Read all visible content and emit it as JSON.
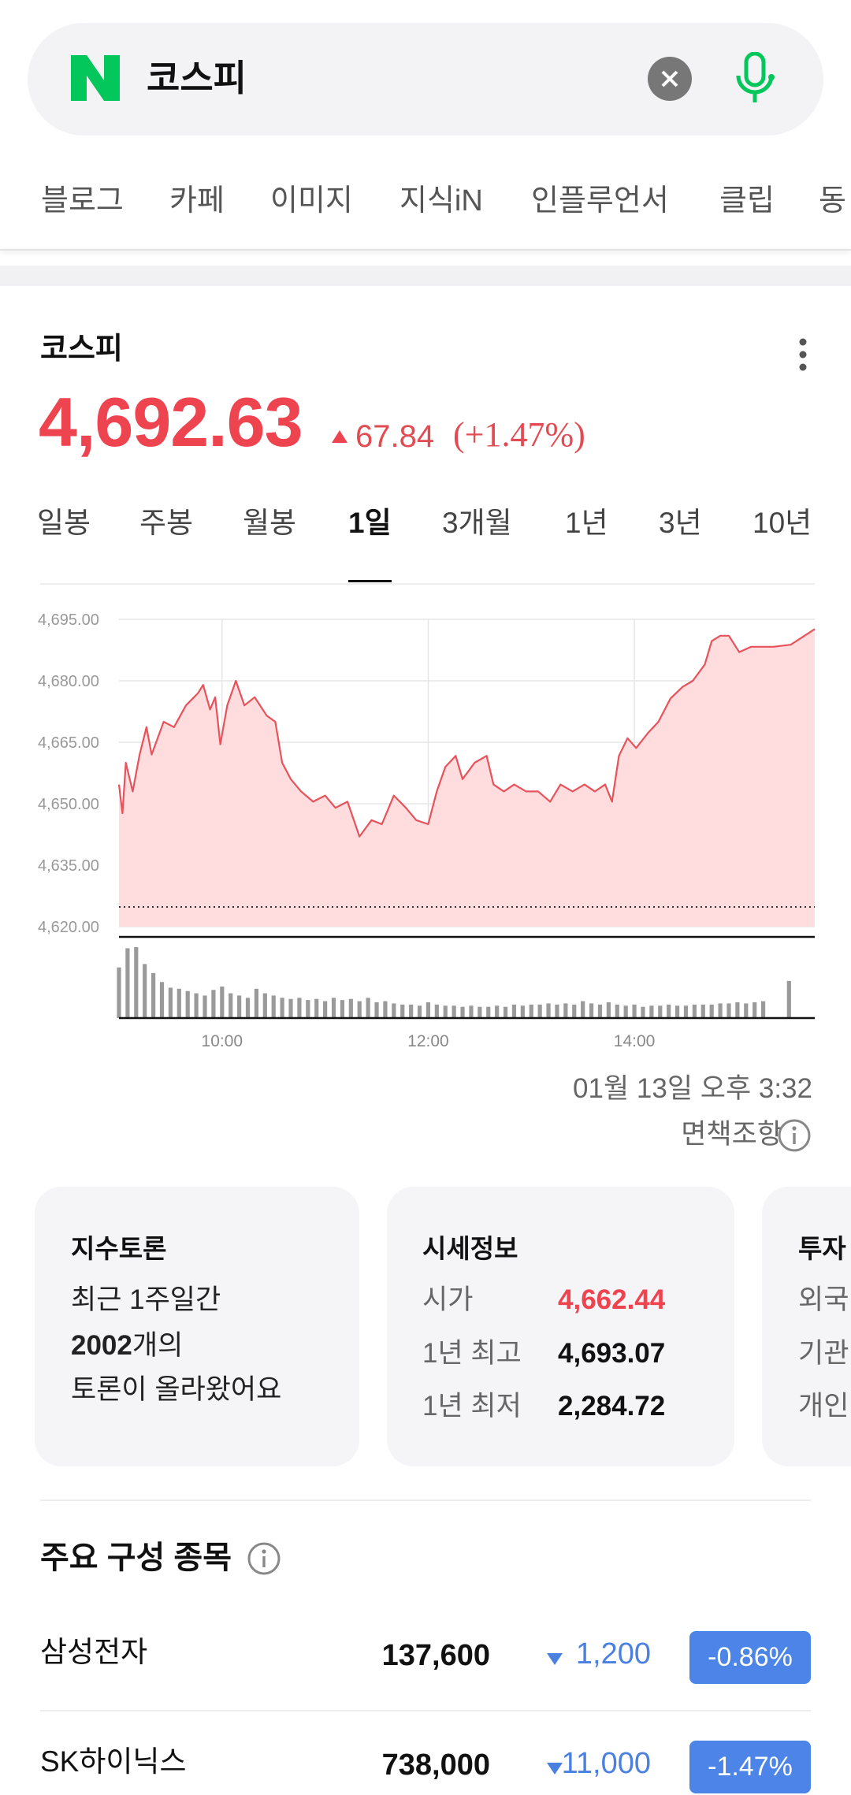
{
  "search": {
    "query": "코스피",
    "tabs": [
      "블로그",
      "카페",
      "이미지",
      "지식iN",
      "인플루언서",
      "클립",
      "동"
    ]
  },
  "quote": {
    "name": "코스피",
    "price": "4,692.63",
    "change": "67.84",
    "change_pct": "(+1.47%)",
    "periods": [
      "일봉",
      "주봉",
      "월봉",
      "1일",
      "3개월",
      "1년",
      "3년",
      "10년"
    ],
    "selected_period": 3,
    "timestamp": "01월 13일 오후 3:32",
    "disclaimer": "면책조항"
  },
  "chart_data": {
    "type": "line",
    "color": "#e8525a",
    "fill": "#ffdcde",
    "x": [
      540,
      542,
      544,
      548,
      552,
      556,
      559,
      566,
      572,
      579,
      586,
      589,
      593,
      596,
      599,
      603,
      608,
      613,
      619,
      626,
      631,
      635,
      640,
      646,
      653,
      660,
      666,
      673,
      680,
      687,
      693,
      700,
      707,
      713,
      720,
      725,
      730,
      736,
      740,
      747,
      754,
      758,
      764,
      770,
      777,
      784,
      791,
      797,
      804,
      811,
      817,
      823,
      827,
      831,
      836,
      841,
      848,
      854,
      861,
      868,
      874,
      881,
      885,
      890,
      895,
      901,
      908,
      915,
      921,
      931,
      945
    ],
    "values": [
      4654.7,
      4647.7,
      4660,
      4653,
      4662,
      4668.7,
      4662,
      4670,
      4668.7,
      4674,
      4677,
      4679,
      4673,
      4676,
      4664.5,
      4674,
      4680,
      4674,
      4676,
      4671.5,
      4670,
      4660,
      4656,
      4653,
      4650.5,
      4652,
      4649,
      4650.5,
      4642,
      4646,
      4645,
      4652,
      4649,
      4646,
      4645,
      4653,
      4659,
      4661.7,
      4656,
      4660,
      4661.7,
      4654.7,
      4653,
      4654.7,
      4653,
      4653,
      4650.5,
      4654.7,
      4653,
      4654.7,
      4653,
      4654.7,
      4650.5,
      4661.7,
      4666,
      4663.6,
      4667.3,
      4670,
      4675.7,
      4678.5,
      4680,
      4684,
      4689.7,
      4691,
      4691,
      4687,
      4688.3,
      4688.3,
      4688.3,
      4688.8,
      4692.63
    ],
    "reference_line": 4624.8,
    "xlim": [
      540,
      945
    ],
    "xticks": [
      {
        "value": 600,
        "label": "10:00"
      },
      {
        "value": 720,
        "label": "12:00"
      },
      {
        "value": 840,
        "label": "14:00"
      }
    ],
    "ylim": [
      4620,
      4695
    ],
    "yticks": [
      {
        "value": 4620,
        "label": "4,620.00"
      },
      {
        "value": 4635,
        "label": "4,635.00"
      },
      {
        "value": 4650,
        "label": "4,650.00"
      },
      {
        "value": 4665,
        "label": "4,665.00"
      },
      {
        "value": 4680,
        "label": "4,680.00"
      },
      {
        "value": 4695,
        "label": "4,695.00"
      }
    ],
    "grid": true,
    "volume": {
      "color": "#9a9a9a",
      "ylim": [
        0,
        70
      ],
      "x": [
        540,
        545,
        550,
        555,
        560,
        565,
        570,
        575,
        580,
        585,
        590,
        595,
        600,
        605,
        610,
        615,
        620,
        625,
        630,
        635,
        640,
        645,
        650,
        655,
        660,
        665,
        670,
        675,
        680,
        685,
        690,
        695,
        700,
        705,
        710,
        715,
        720,
        725,
        730,
        735,
        740,
        745,
        750,
        755,
        760,
        765,
        770,
        775,
        780,
        785,
        790,
        795,
        800,
        805,
        810,
        815,
        820,
        825,
        830,
        835,
        840,
        845,
        850,
        855,
        860,
        865,
        870,
        875,
        880,
        885,
        890,
        895,
        900,
        905,
        910,
        915,
        930
      ],
      "values": [
        45,
        62,
        63,
        48,
        40,
        32,
        27,
        26,
        24,
        22,
        20,
        25,
        28,
        22,
        20,
        18,
        26,
        22,
        20,
        18,
        17,
        18,
        16,
        17,
        15,
        18,
        16,
        17,
        15,
        18,
        14,
        15,
        13,
        12,
        12,
        11,
        14,
        12,
        11,
        11,
        10,
        11,
        10,
        10,
        11,
        10,
        12,
        11,
        12,
        12,
        13,
        12,
        13,
        12,
        15,
        13,
        12,
        14,
        12,
        11,
        12,
        10,
        11,
        11,
        12,
        11,
        11,
        12,
        12,
        12,
        13,
        13,
        14,
        13,
        14,
        15,
        33
      ]
    }
  },
  "cards": [
    {
      "title": "지수토론",
      "lines": [
        {
          "text": "최근 1주일간"
        },
        {
          "bold": "2002",
          "text": "개의"
        },
        {
          "text": "토론이 올라왔어요"
        }
      ]
    },
    {
      "title": "시세정보",
      "rows": [
        [
          "시가",
          "4,662.44"
        ],
        [
          "1년 최고",
          "4,693.07"
        ],
        [
          "1년 최저",
          "2,284.72"
        ]
      ]
    },
    {
      "title": "투자",
      "rows": [
        "외국",
        "기관",
        "개인"
      ]
    }
  ],
  "constituents": {
    "title": "주요 구성 종목",
    "rows": [
      {
        "name": "삼성전자",
        "price": "137,600",
        "change": "1,200",
        "change_pct": "-0.86%"
      },
      {
        "name": "SK하이닉스",
        "price": "738,000",
        "change": "11,000",
        "change_pct": "-1.47%"
      }
    ]
  }
}
